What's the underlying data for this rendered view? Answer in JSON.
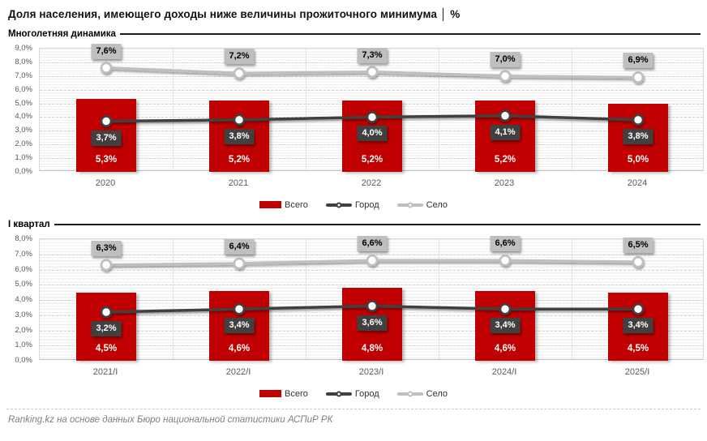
{
  "page": {
    "title": "Доля населения, имеющего доходы ниже величины прожиточного минимума │ %",
    "footer": "Ranking.kz на основе данных Бюро национальной статистики АСПиР РК"
  },
  "legend": {
    "total": "Всего",
    "city": "Город",
    "village": "Село"
  },
  "colors": {
    "total": "#C00000",
    "city": "#404040",
    "village": "#BFBFBF",
    "gridline": "#D9D9D9",
    "axis_text": "#595959"
  },
  "chart_data": [
    {
      "type": "bar",
      "section_title": "Многолетняя динамика",
      "categories": [
        "2020",
        "2021",
        "2022",
        "2023",
        "2024"
      ],
      "series": [
        {
          "name": "Всего",
          "kind": "bar",
          "color": "#C00000",
          "values": [
            5.3,
            5.2,
            5.2,
            5.2,
            5.0
          ],
          "labels": [
            "5,3%",
            "5,2%",
            "5,2%",
            "5,2%",
            "5,0%"
          ]
        },
        {
          "name": "Город",
          "kind": "line",
          "color": "#404040",
          "label_text": "#FFFFFF",
          "label_pos": "below",
          "values": [
            3.7,
            3.8,
            4.0,
            4.1,
            3.8
          ],
          "labels": [
            "3,7%",
            "3,8%",
            "4,0%",
            "4,1%",
            "3,8%"
          ]
        },
        {
          "name": "Село",
          "kind": "line",
          "color": "#BFBFBF",
          "label_text": "#000000",
          "label_pos": "above",
          "values": [
            7.6,
            7.2,
            7.3,
            7.0,
            6.9
          ],
          "labels": [
            "7,6%",
            "7,2%",
            "7,3%",
            "7,0%",
            "6,9%"
          ]
        }
      ],
      "ylim": [
        0,
        9
      ],
      "ytick_step": 1,
      "ytick_labels": [
        "0,0%",
        "1,0%",
        "2,0%",
        "3,0%",
        "4,0%",
        "5,0%",
        "6,0%",
        "7,0%",
        "8,0%",
        "9,0%"
      ],
      "grid": "on",
      "legend_position": "bottom"
    },
    {
      "type": "bar",
      "section_title": "I квартал",
      "categories": [
        "2021/I",
        "2022/I",
        "2023/I",
        "2024/I",
        "2025/I"
      ],
      "series": [
        {
          "name": "Всего",
          "kind": "bar",
          "color": "#C00000",
          "values": [
            4.5,
            4.6,
            4.8,
            4.6,
            4.5
          ],
          "labels": [
            "4,5%",
            "4,6%",
            "4,8%",
            "4,6%",
            "4,5%"
          ]
        },
        {
          "name": "Город",
          "kind": "line",
          "color": "#404040",
          "label_text": "#FFFFFF",
          "label_pos": "below",
          "values": [
            3.2,
            3.4,
            3.6,
            3.4,
            3.4
          ],
          "labels": [
            "3,2%",
            "3,4%",
            "3,6%",
            "3,4%",
            "3,4%"
          ]
        },
        {
          "name": "Село",
          "kind": "line",
          "color": "#BFBFBF",
          "label_text": "#000000",
          "label_pos": "above",
          "values": [
            6.3,
            6.4,
            6.6,
            6.6,
            6.5
          ],
          "labels": [
            "6,3%",
            "6,4%",
            "6,6%",
            "6,6%",
            "6,5%"
          ]
        }
      ],
      "ylim": [
        0,
        8
      ],
      "ytick_step": 1,
      "ytick_labels": [
        "0,0%",
        "1,0%",
        "2,0%",
        "3,0%",
        "4,0%",
        "5,0%",
        "6,0%",
        "7,0%",
        "8,0%"
      ],
      "grid": "on",
      "legend_position": "bottom"
    }
  ]
}
